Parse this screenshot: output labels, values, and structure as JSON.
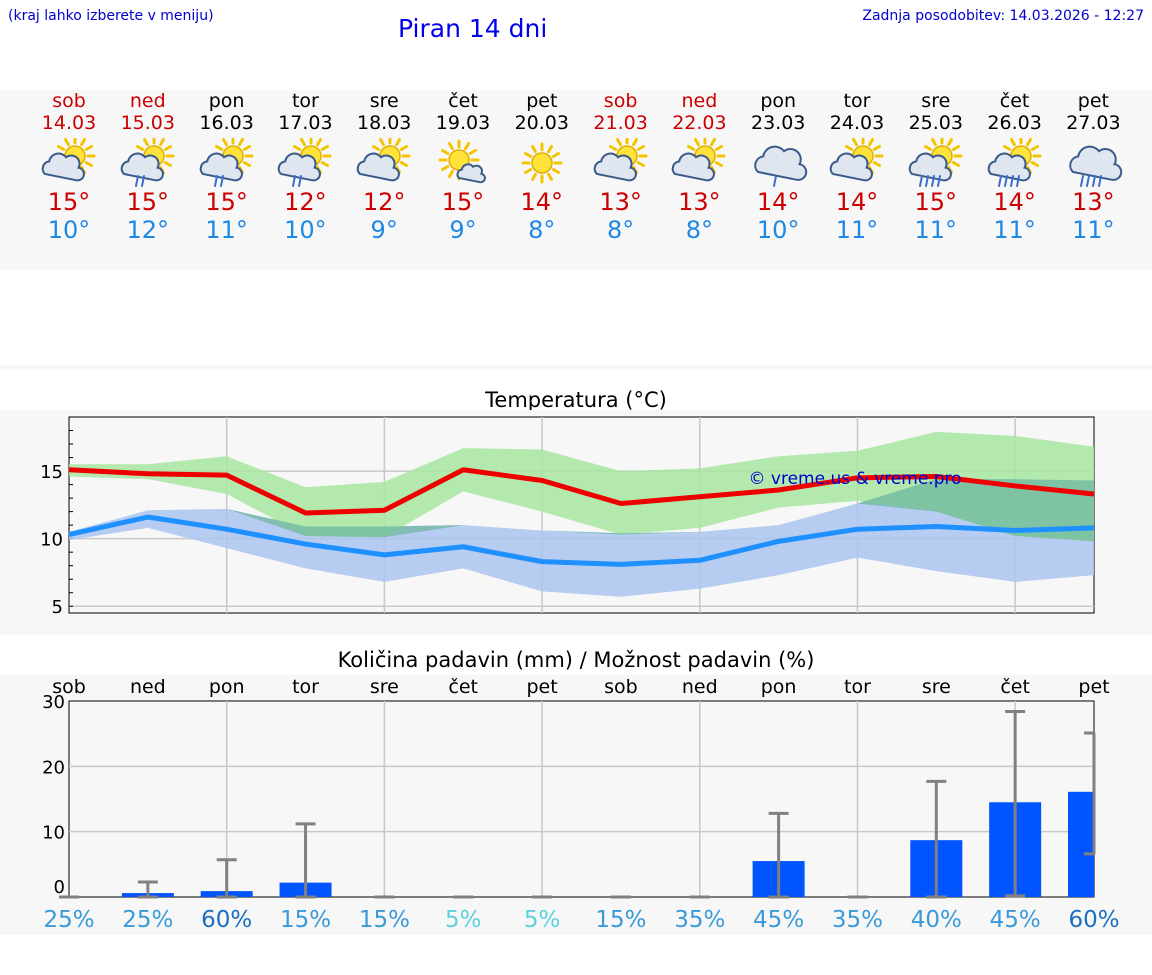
{
  "header": {
    "hint": "(kraj lahko izberete v meniju)",
    "title": "Piran 14 dni",
    "updated": "Zadnja posodobitev: 14.03.2026 - 12:27"
  },
  "days": [
    {
      "name": "sob",
      "date": "14.03",
      "weekend": true,
      "icon": "sun-cloud-icon",
      "max": "15°",
      "min": "10°"
    },
    {
      "name": "ned",
      "date": "15.03",
      "weekend": true,
      "icon": "sun-cloud-rain-icon",
      "max": "15°",
      "min": "12°"
    },
    {
      "name": "pon",
      "date": "16.03",
      "weekend": false,
      "icon": "sun-cloud-rain-icon",
      "max": "15°",
      "min": "11°"
    },
    {
      "name": "tor",
      "date": "17.03",
      "weekend": false,
      "icon": "sun-cloud-rain-icon",
      "max": "12°",
      "min": "10°"
    },
    {
      "name": "sre",
      "date": "18.03",
      "weekend": false,
      "icon": "sun-cloud-icon",
      "max": "12°",
      "min": "9°"
    },
    {
      "name": "čet",
      "date": "19.03",
      "weekend": false,
      "icon": "sun-small-cloud-icon",
      "max": "15°",
      "min": "9°"
    },
    {
      "name": "pet",
      "date": "20.03",
      "weekend": false,
      "icon": "sun-icon",
      "max": "14°",
      "min": "8°"
    },
    {
      "name": "sob",
      "date": "21.03",
      "weekend": true,
      "icon": "sun-cloud-icon",
      "max": "13°",
      "min": "8°"
    },
    {
      "name": "ned",
      "date": "22.03",
      "weekend": true,
      "icon": "sun-cloud-icon",
      "max": "13°",
      "min": "8°"
    },
    {
      "name": "pon",
      "date": "23.03",
      "weekend": false,
      "icon": "cloud-rain-icon",
      "max": "14°",
      "min": "10°"
    },
    {
      "name": "tor",
      "date": "24.03",
      "weekend": false,
      "icon": "sun-cloud-icon",
      "max": "14°",
      "min": "11°"
    },
    {
      "name": "sre",
      "date": "25.03",
      "weekend": false,
      "icon": "sun-cloud-heavy-rain-icon",
      "max": "15°",
      "min": "11°"
    },
    {
      "name": "čet",
      "date": "26.03",
      "weekend": false,
      "icon": "sun-cloud-heavy-rain-icon",
      "max": "14°",
      "min": "11°"
    },
    {
      "name": "pet",
      "date": "27.03",
      "weekend": false,
      "icon": "cloud-heavy-rain-icon",
      "max": "13°",
      "min": "11°"
    }
  ],
  "colors": {
    "max_line": "#ee0000",
    "min_line": "#1e90ff",
    "max_band": "#a8e6a0",
    "min_band": "#aac4f0",
    "bar": "#0055ff",
    "errorbar": "#808080",
    "watermark": "#0000cc"
  },
  "chart_data": [
    {
      "type": "line",
      "title": "Temperatura (°C)",
      "watermark": "© vreme.us & vreme.pro",
      "ylim": [
        4.5,
        19
      ],
      "yticks": [
        5,
        10,
        15
      ],
      "x": [
        0,
        1,
        2,
        3,
        4,
        5,
        6,
        7,
        8,
        9,
        10,
        11,
        12,
        13
      ],
      "series": [
        {
          "name": "max",
          "values": [
            15.1,
            14.8,
            14.7,
            11.9,
            12.1,
            15.1,
            14.3,
            12.6,
            13.1,
            13.6,
            14.5,
            14.6,
            13.9,
            13.3
          ]
        },
        {
          "name": "max_upper",
          "values": [
            15.5,
            15.5,
            16.1,
            13.8,
            14.2,
            16.7,
            16.6,
            15.0,
            15.2,
            16.1,
            16.5,
            17.9,
            17.6,
            16.8
          ]
        },
        {
          "name": "max_lower",
          "values": [
            14.6,
            14.4,
            13.3,
            10.2,
            10.1,
            13.5,
            12.0,
            10.3,
            10.8,
            12.3,
            12.8,
            12.0,
            10.2,
            9.8
          ]
        },
        {
          "name": "min",
          "values": [
            10.3,
            11.6,
            10.7,
            9.6,
            8.8,
            9.4,
            8.3,
            8.1,
            8.4,
            9.8,
            10.7,
            10.9,
            10.6,
            10.8
          ]
        },
        {
          "name": "min_upper",
          "values": [
            10.5,
            12.1,
            12.2,
            10.9,
            10.9,
            11.0,
            10.6,
            10.4,
            10.5,
            11.0,
            12.6,
            14.4,
            14.4,
            14.3
          ]
        },
        {
          "name": "min_lower",
          "values": [
            9.9,
            10.8,
            9.3,
            7.8,
            6.8,
            7.8,
            6.1,
            5.7,
            6.3,
            7.3,
            8.6,
            7.6,
            6.8,
            7.3
          ]
        }
      ]
    },
    {
      "type": "bar",
      "title": "Količina padavin (mm) / Možnost padavin (%)",
      "categories": [
        "sob",
        "ned",
        "pon",
        "tor",
        "sre",
        "čet",
        "pet",
        "sob",
        "ned",
        "pon",
        "tor",
        "sre",
        "čet",
        "pet"
      ],
      "ylim": [
        0,
        30
      ],
      "yticks": [
        0,
        10,
        20,
        30
      ],
      "values": [
        0,
        0.6,
        0.9,
        2.2,
        0,
        0,
        0,
        0,
        0,
        5.5,
        0,
        8.7,
        14.5,
        16.1
      ],
      "error_high": [
        0,
        2.3,
        5.7,
        11.2,
        0,
        0,
        0,
        0,
        0,
        12.8,
        0,
        17.7,
        28.4,
        25.1
      ],
      "error_low": [
        0,
        0,
        0,
        0,
        0,
        0,
        0,
        0,
        0,
        0,
        0,
        0,
        0.2,
        6.6
      ],
      "probability": [
        "25%",
        "25%",
        "60%",
        "15%",
        "15%",
        "5%",
        "5%",
        "15%",
        "35%",
        "45%",
        "35%",
        "40%",
        "45%",
        "60%"
      ],
      "probability_colors": [
        "#3a9ad9",
        "#3a9ad9",
        "#1a6fc0",
        "#3a9ad9",
        "#3a9ad9",
        "#5fd0e0",
        "#5fd0e0",
        "#3a9ad9",
        "#3a9ad9",
        "#3a9ad9",
        "#3a9ad9",
        "#3a9ad9",
        "#3a9ad9",
        "#1a6fc0"
      ]
    }
  ]
}
